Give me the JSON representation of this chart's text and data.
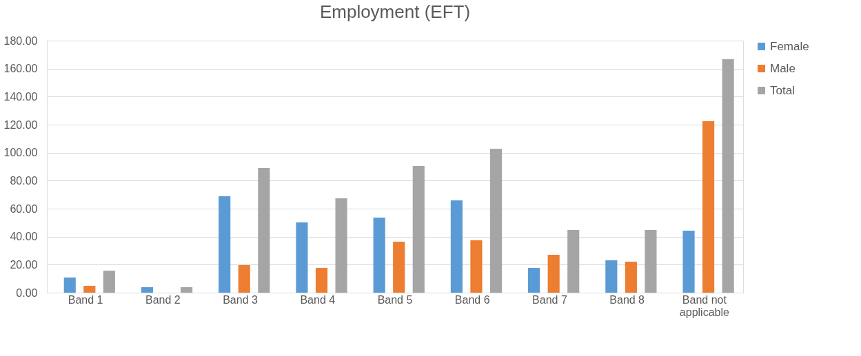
{
  "chart_data": {
    "type": "bar",
    "title": "Employment (EFT)",
    "categories": [
      "Band 1",
      "Band 2",
      "Band 3",
      "Band 4",
      "Band 5",
      "Band 6",
      "Band 7",
      "Band 8",
      "Band not applicable"
    ],
    "series": [
      {
        "name": "Female",
        "color": "#5b9bd5",
        "values": [
          10.8,
          3.9,
          68.9,
          50.2,
          53.6,
          65.9,
          17.7,
          23.1,
          44.3
        ]
      },
      {
        "name": "Male",
        "color": "#ed7d31",
        "values": [
          4.9,
          0,
          19.7,
          17.7,
          36.4,
          37.4,
          27.0,
          22.1,
          122.5
        ]
      },
      {
        "name": "Total",
        "color": "#a5a5a5",
        "values": [
          15.7,
          3.9,
          89.0,
          67.4,
          90.5,
          102.8,
          44.8,
          44.8,
          166.7
        ]
      }
    ],
    "ylim": [
      0,
      180
    ],
    "yticks": [
      {
        "value": 0,
        "label": "0.00"
      },
      {
        "value": 20,
        "label": "20.00"
      },
      {
        "value": 40,
        "label": "40.00"
      },
      {
        "value": 60,
        "label": "60.00"
      },
      {
        "value": 80,
        "label": "80.00"
      },
      {
        "value": 100,
        "label": "100.00"
      },
      {
        "value": 120,
        "label": "120.00"
      },
      {
        "value": 140,
        "label": "140.00"
      },
      {
        "value": 160,
        "label": "160.00"
      },
      {
        "value": 180,
        "label": "180.00"
      }
    ],
    "grid": "y",
    "legend": "right"
  }
}
